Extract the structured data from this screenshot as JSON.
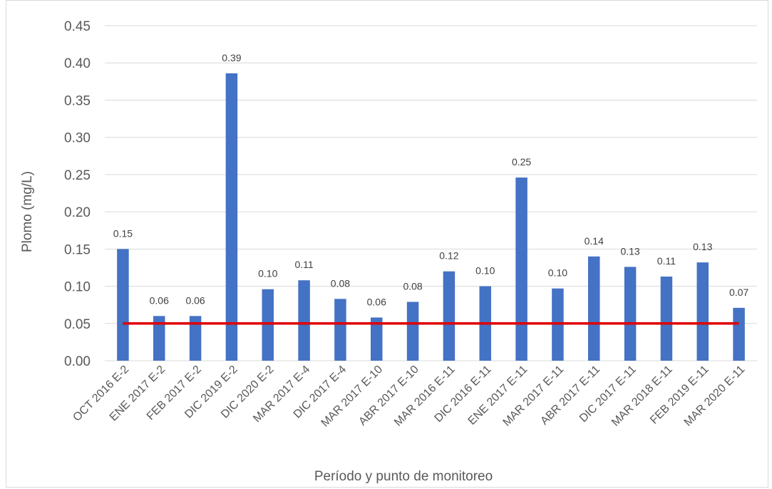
{
  "chart_data": {
    "type": "bar",
    "categories": [
      "OCT 2016  E-2",
      "ENE 2017  E-2",
      "FEB 2017  E-2",
      "DIC 2019  E-2",
      "DIC 2020  E-2",
      "MAR 2017  E-4",
      "DIC 2017  E-4",
      "MAR 2017  E-10",
      "ABR 2017  E-10",
      "MAR 2016  E-11",
      "DIC 2016  E-11",
      "ENE 2017  E-11",
      "MAR 2017  E-11",
      "ABR 2017  E-11",
      "DIC 2017  E-11",
      "MAR 2018  E-11",
      "FEB 2019  E-11",
      "MAR 2020  E-11"
    ],
    "values": [
      0.15,
      0.06,
      0.06,
      0.386,
      0.096,
      0.108,
      0.083,
      0.058,
      0.079,
      0.12,
      0.1,
      0.246,
      0.097,
      0.14,
      0.126,
      0.113,
      0.132,
      0.071
    ],
    "data_labels": [
      "0.15",
      "0.06",
      "0.06",
      "0.39",
      "0.10",
      "0.11",
      "0.08",
      "0.06",
      "0.08",
      "0.12",
      "0.10",
      "0.25",
      "0.10",
      "0.14",
      "0.13",
      "0.11",
      "0.13",
      "0.07"
    ],
    "reference_line": 0.05,
    "xlabel": "Período y punto de monitoreo",
    "ylabel": "Plomo (mg/L)",
    "ylim": [
      0,
      0.45
    ],
    "yticks": [
      "0.00",
      "0.05",
      "0.10",
      "0.15",
      "0.20",
      "0.25",
      "0.30",
      "0.35",
      "0.40",
      "0.45"
    ],
    "grid": true,
    "colors": {
      "bar": "#4472C4",
      "reference_line": "#E00000",
      "grid": "#d9d9d9"
    }
  }
}
